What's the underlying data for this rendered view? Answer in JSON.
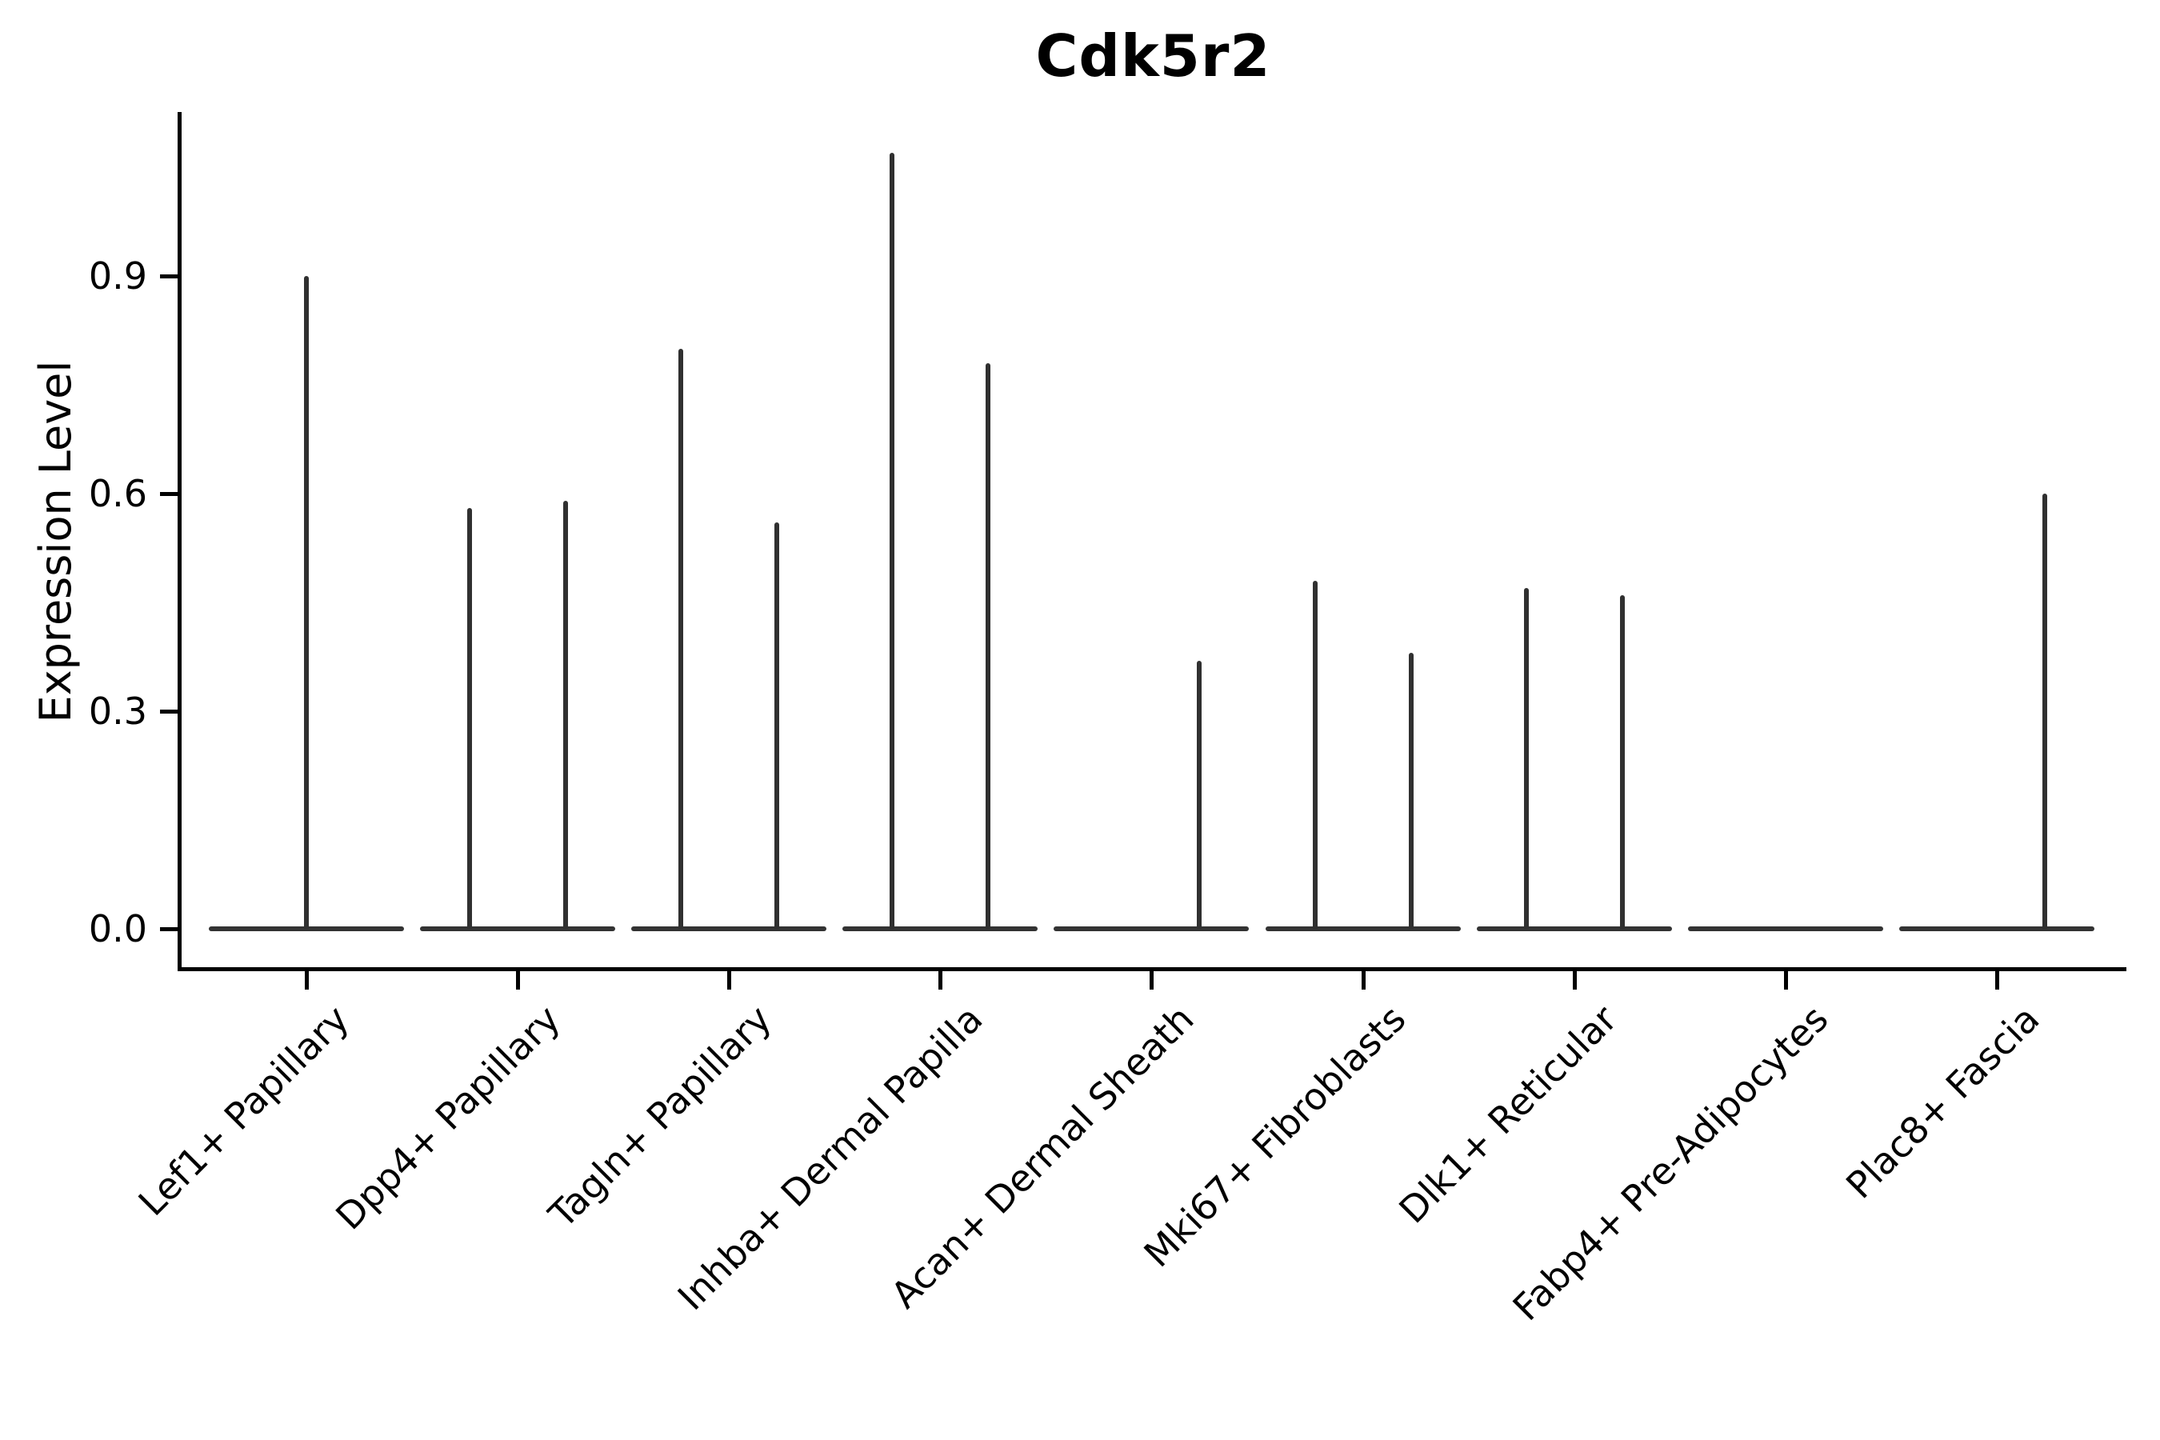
{
  "figure": {
    "title": "Cdk5r2",
    "background_color": "#ffffff",
    "axis_color": "#000000",
    "violin_color": "#333333",
    "text_color": "#000000"
  },
  "chart_data": {
    "type": "violin",
    "title": "Cdk5r2",
    "xlabel": "",
    "ylabel": "Expression Level",
    "ylim": [
      0,
      1.13
    ],
    "yticks": [
      "0.0",
      "0.3",
      "0.6",
      "0.9"
    ],
    "ytick_values": [
      0.0,
      0.3,
      0.6,
      0.9
    ],
    "grid": "off",
    "legend": "none",
    "description": "Single-cell expression violin plot; each category shows a flat zero-expression body with narrow density spikes reaching the maximum expression of the few positive cells.",
    "categories": [
      "Lef1+ Papillary",
      "Dpp4+ Papillary",
      "Tagln+ Papillary",
      "Inhba+ Dermal Papilla",
      "Acan+ Dermal Sheath",
      "Mki67+ Fibroblasts",
      "Dlk1+ Reticular",
      "Fabp4+ Pre-Adipocytes",
      "Plac8+ Fascia"
    ],
    "violins": [
      {
        "category": "Lef1+ Papillary",
        "zero_body": true,
        "spikes": [
          {
            "pos": "center",
            "max": 0.9
          }
        ]
      },
      {
        "category": "Dpp4+ Papillary",
        "zero_body": true,
        "spikes": [
          {
            "pos": "left",
            "max": 0.58
          },
          {
            "pos": "right",
            "max": 0.59
          }
        ]
      },
      {
        "category": "Tagln+ Papillary",
        "zero_body": true,
        "spikes": [
          {
            "pos": "left",
            "max": 0.8
          },
          {
            "pos": "right",
            "max": 0.56
          }
        ]
      },
      {
        "category": "Inhba+ Dermal Papilla",
        "zero_body": true,
        "spikes": [
          {
            "pos": "left",
            "max": 1.07
          },
          {
            "pos": "right",
            "max": 0.78
          }
        ]
      },
      {
        "category": "Acan+ Dermal Sheath",
        "zero_body": true,
        "spikes": [
          {
            "pos": "right",
            "max": 0.37
          }
        ]
      },
      {
        "category": "Mki67+ Fibroblasts",
        "zero_body": true,
        "spikes": [
          {
            "pos": "left",
            "max": 0.48
          },
          {
            "pos": "right",
            "max": 0.38
          }
        ]
      },
      {
        "category": "Dlk1+ Reticular",
        "zero_body": true,
        "spikes": [
          {
            "pos": "left",
            "max": 0.47
          },
          {
            "pos": "right",
            "max": 0.46
          }
        ]
      },
      {
        "category": "Fabp4+ Pre-Adipocytes",
        "zero_body": true,
        "spikes": []
      },
      {
        "category": "Plac8+ Fascia",
        "zero_body": true,
        "spikes": [
          {
            "pos": "right",
            "max": 0.6
          }
        ]
      }
    ]
  }
}
